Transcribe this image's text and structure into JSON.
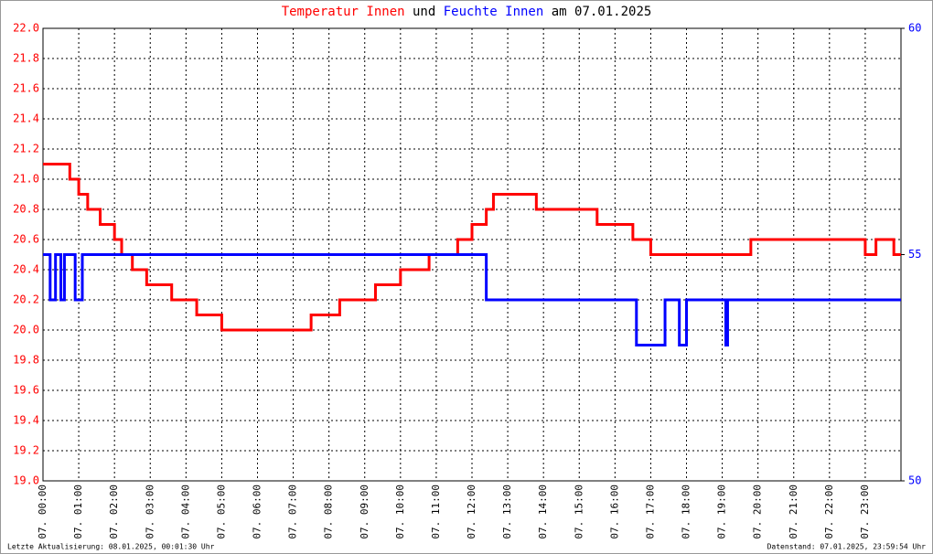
{
  "chart_data": {
    "type": "line",
    "title": [
      {
        "text": "Temperatur Innen",
        "color": "#ff0000"
      },
      {
        "text": "und",
        "color": "#000000"
      },
      {
        "text": "Feuchte Innen",
        "color": "#0000ff"
      },
      {
        "text": "am 07.01.2025",
        "color": "#000000"
      }
    ],
    "footer_left": "Letzte Aktualisierung: 08.01.2025, 00:01:30 Uhr",
    "footer_right": "Datenstand: 07.01.2025, 23:59:54 Uhr",
    "xlim": [
      0,
      24
    ],
    "xticks": [
      {
        "value": 0,
        "label": "07. 00:00"
      },
      {
        "value": 1,
        "label": "07. 01:00"
      },
      {
        "value": 2,
        "label": "07. 02:00"
      },
      {
        "value": 3,
        "label": "07. 03:00"
      },
      {
        "value": 4,
        "label": "07. 04:00"
      },
      {
        "value": 5,
        "label": "07. 05:00"
      },
      {
        "value": 6,
        "label": "07. 06:00"
      },
      {
        "value": 7,
        "label": "07. 07:00"
      },
      {
        "value": 8,
        "label": "07. 08:00"
      },
      {
        "value": 9,
        "label": "07. 09:00"
      },
      {
        "value": 10,
        "label": "07. 10:00"
      },
      {
        "value": 11,
        "label": "07. 11:00"
      },
      {
        "value": 12,
        "label": "07. 12:00"
      },
      {
        "value": 13,
        "label": "07. 13:00"
      },
      {
        "value": 14,
        "label": "07. 14:00"
      },
      {
        "value": 15,
        "label": "07. 15:00"
      },
      {
        "value": 16,
        "label": "07. 16:00"
      },
      {
        "value": 17,
        "label": "07. 17:00"
      },
      {
        "value": 18,
        "label": "07. 18:00"
      },
      {
        "value": 19,
        "label": "07. 19:00"
      },
      {
        "value": 20,
        "label": "07. 20:00"
      },
      {
        "value": 21,
        "label": "07. 21:00"
      },
      {
        "value": 22,
        "label": "07. 22:00"
      },
      {
        "value": 23,
        "label": "07. 23:00"
      }
    ],
    "ylim": [
      19,
      22
    ],
    "yticks": [
      {
        "value": 19,
        "label": "19.0"
      },
      19.2,
      19.4,
      19.6,
      19.8,
      {
        "value": 20,
        "label": "20.0"
      },
      20.2,
      20.4,
      20.6,
      20.8,
      {
        "value": 21,
        "label": "21.0"
      },
      21.2,
      21.4,
      21.6,
      21.8,
      {
        "value": 22,
        "label": "22.0"
      }
    ],
    "y2lim": [
      50,
      60
    ],
    "y2ticks": [
      50,
      55,
      60
    ],
    "grid": true,
    "series": [
      {
        "name": "Temperatur Innen",
        "color": "#ff0000",
        "x": [
          0,
          0.75,
          0.75,
          1.0,
          1.0,
          1.25,
          1.25,
          1.6,
          1.6,
          2.0,
          2.0,
          2.2,
          2.2,
          2.5,
          2.5,
          2.9,
          2.9,
          3.6,
          3.6,
          4.3,
          4.3,
          5.0,
          5.0,
          7.5,
          7.5,
          8.3,
          8.3,
          9.3,
          9.3,
          10.0,
          10.0,
          10.8,
          10.8,
          11.6,
          11.6,
          12.0,
          12.0,
          12.4,
          12.4,
          12.6,
          12.6,
          13.8,
          13.8,
          15.5,
          15.5,
          16.5,
          16.5,
          17.0,
          17.0,
          19.8,
          19.8,
          23.0,
          23.0,
          23.3,
          23.3,
          23.8,
          23.8,
          24.0
        ],
        "values": [
          21.1,
          21.1,
          21.0,
          21.0,
          20.9,
          20.9,
          20.8,
          20.8,
          20.7,
          20.7,
          20.6,
          20.6,
          20.5,
          20.5,
          20.4,
          20.4,
          20.3,
          20.3,
          20.2,
          20.2,
          20.1,
          20.1,
          20.0,
          20.0,
          20.1,
          20.1,
          20.2,
          20.2,
          20.3,
          20.3,
          20.4,
          20.4,
          20.5,
          20.5,
          20.6,
          20.6,
          20.7,
          20.7,
          20.8,
          20.8,
          20.9,
          20.9,
          20.8,
          20.8,
          20.7,
          20.7,
          20.6,
          20.6,
          20.5,
          20.5,
          20.6,
          20.6,
          20.5,
          20.5,
          20.6,
          20.6,
          20.5,
          20.5
        ]
      },
      {
        "name": "Feuchte Innen",
        "color": "#0000ff",
        "axis": "y2",
        "x": [
          0,
          0.2,
          0.2,
          0.35,
          0.35,
          0.5,
          0.5,
          0.6,
          0.6,
          0.9,
          0.9,
          1.1,
          1.1,
          12.4,
          12.4,
          16.6,
          16.6,
          17.4,
          17.4,
          17.8,
          17.8,
          18.0,
          18.0,
          19.1,
          19.1,
          19.15,
          19.15,
          24
        ],
        "values": [
          55,
          55,
          54,
          54,
          55,
          55,
          54,
          54,
          55,
          55,
          54,
          54,
          55,
          55,
          54,
          54,
          53,
          53,
          54,
          54,
          53,
          53,
          54,
          54,
          53,
          53,
          54,
          54
        ]
      }
    ]
  }
}
